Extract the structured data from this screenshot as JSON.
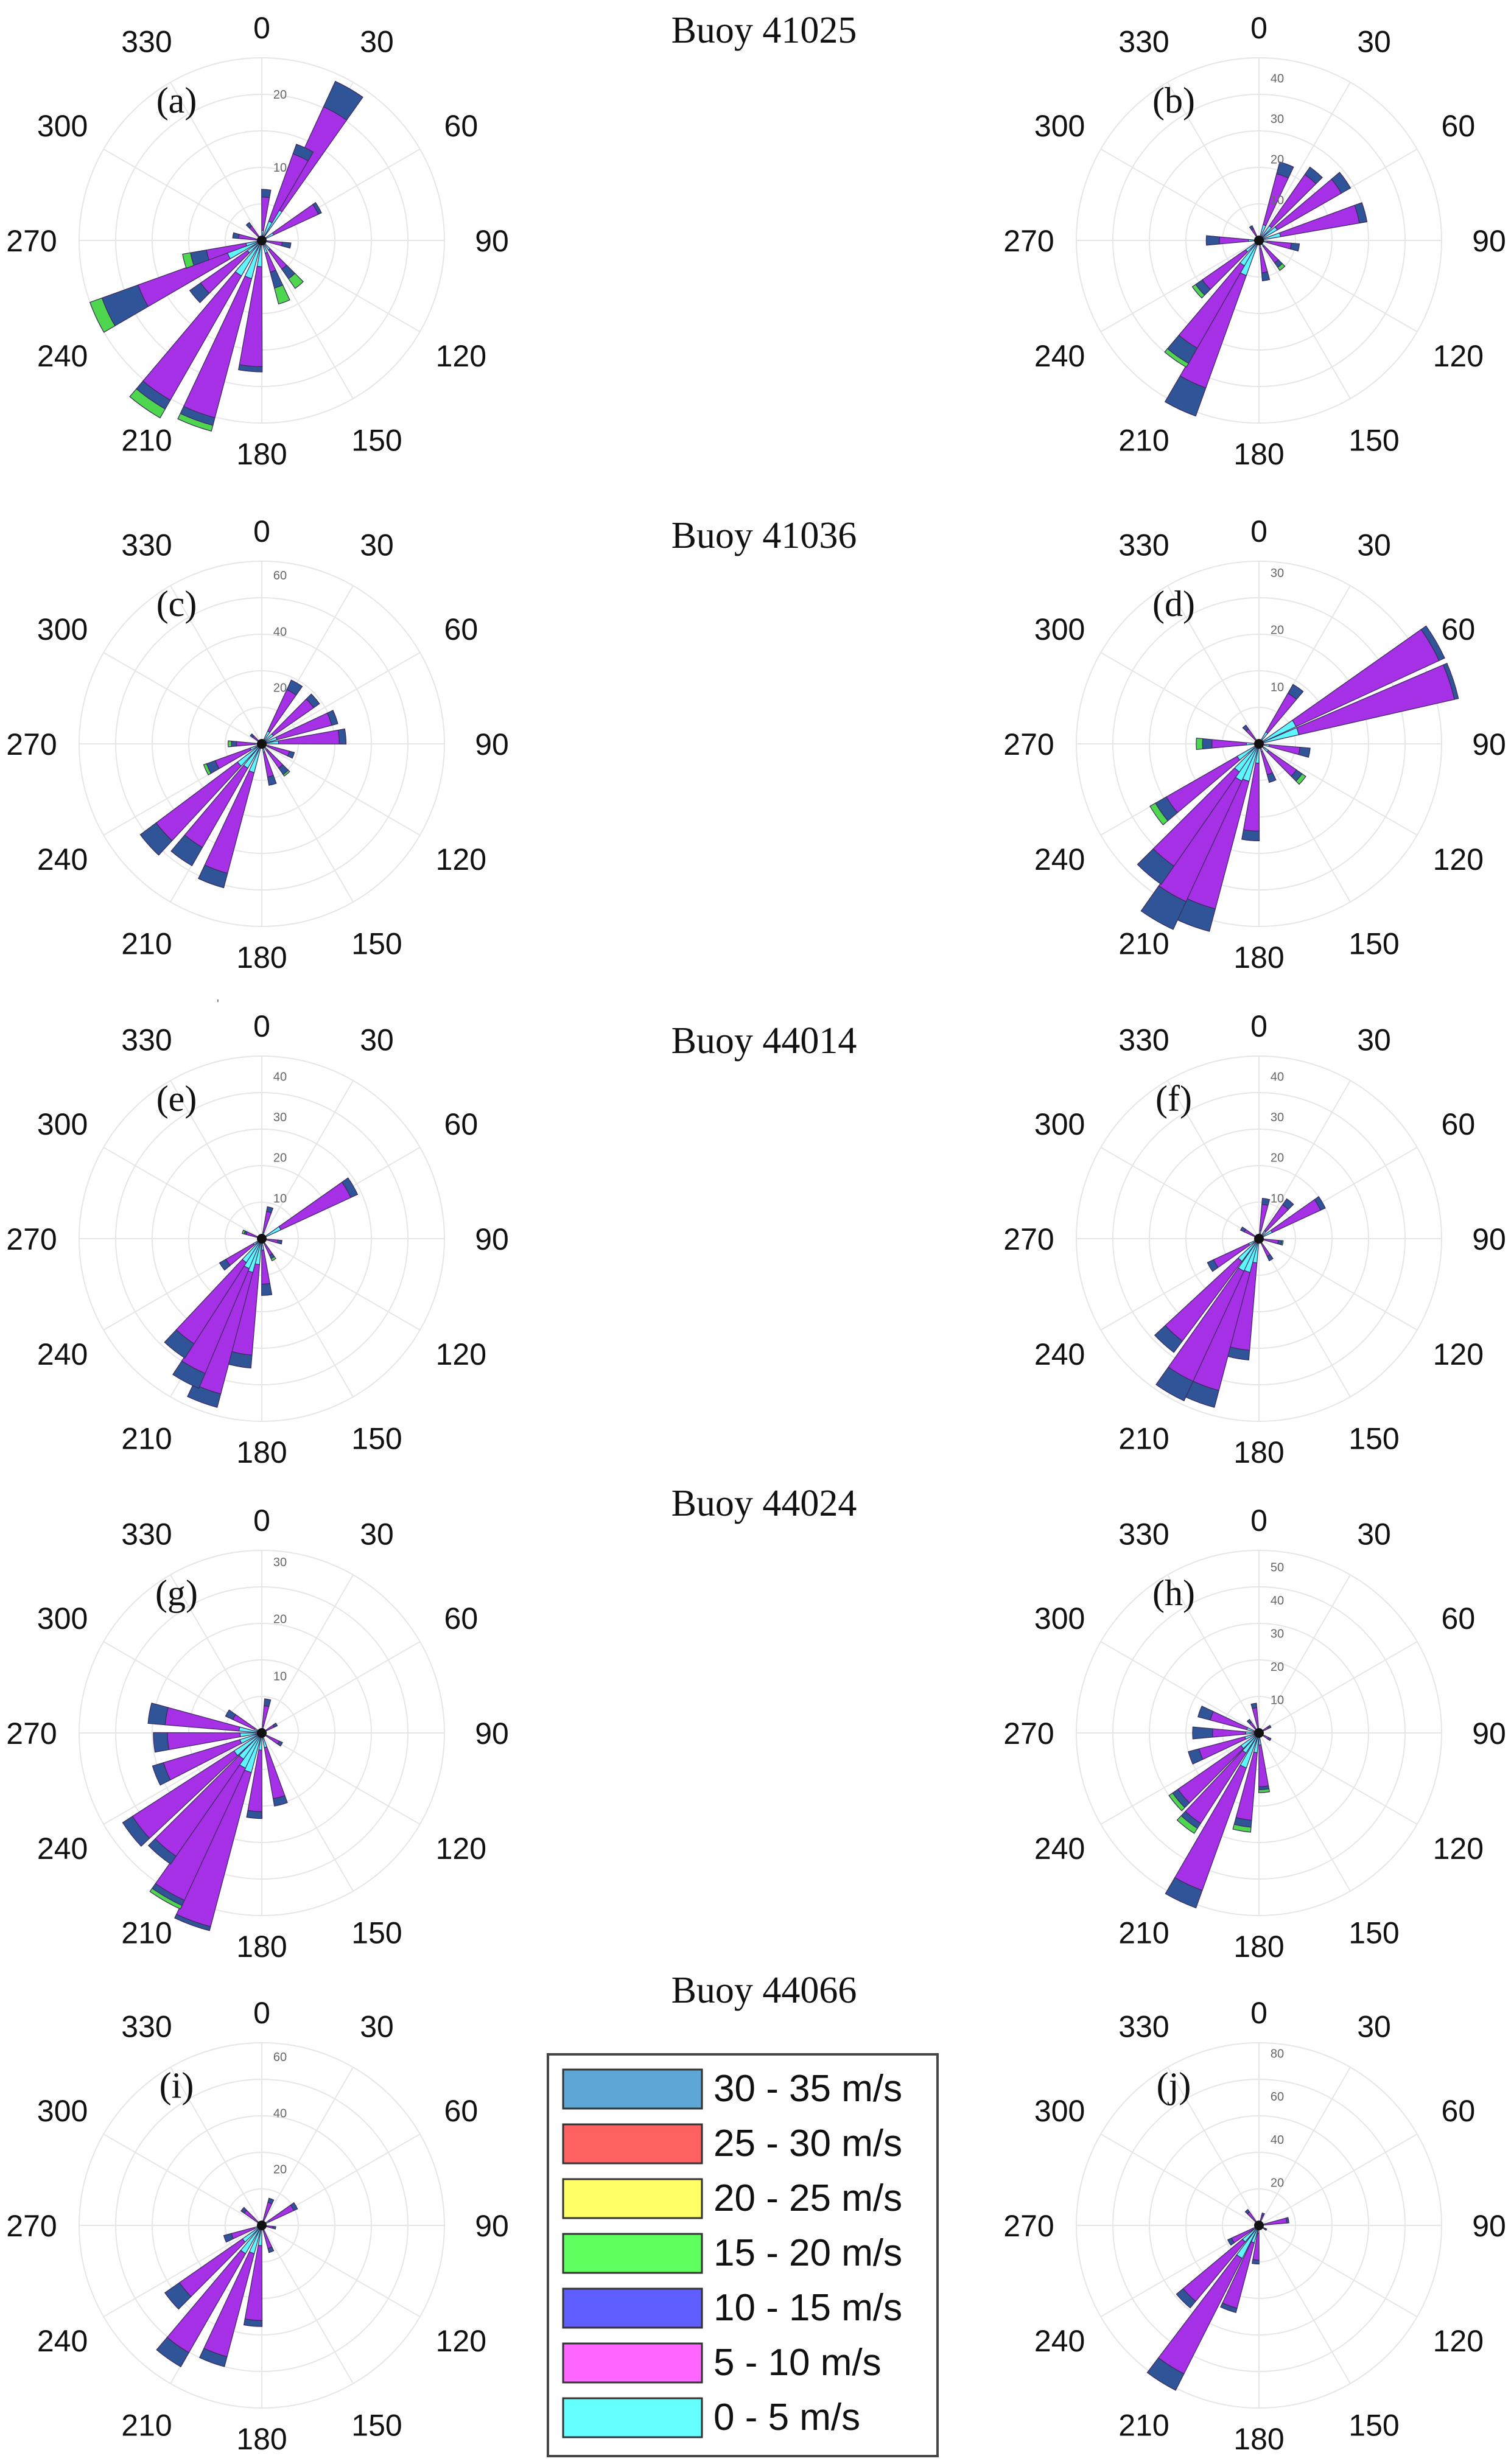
{
  "colors": {
    "0-5": "#5ff7ff",
    "5-10": "#a530e6",
    "10-15": "#2f5497",
    "15-20": "#4fd64f",
    "20-25": "#e8b438",
    "25-30": "#ff6161",
    "30-35": "#5ea6d6"
  },
  "chart_data": [
    {
      "type": "polar-bar",
      "panel": "(a)",
      "group_title": "Buoy 41025",
      "angle_ticks": [
        "0",
        "30",
        "60",
        "90",
        "120",
        "150",
        "180",
        "210",
        "240",
        "270",
        "300",
        "330"
      ],
      "radial_ticks": [
        "10",
        "20"
      ],
      "rmax": 25,
      "bars": [
        {
          "dir": 30,
          "mag": 24,
          "s1": 0.84,
          "s2": 1.0
        },
        {
          "dir": 25,
          "mag": 14,
          "s1": 0.9,
          "s2": 1.0
        },
        {
          "dir": 60,
          "mag": 9,
          "s1": 0.95,
          "s2": 1.0
        },
        {
          "dir": 5,
          "mag": 7,
          "s1": 0.85,
          "s2": 1.0
        },
        {
          "dir": 100,
          "mag": 4,
          "s1": 0.7,
          "s2": 1.0
        },
        {
          "dir": 140,
          "mag": 8,
          "s1": 0.6,
          "s2": 0.8
        },
        {
          "dir": 160,
          "mag": 9,
          "s1": 0.5,
          "s2": 0.75
        },
        {
          "dir": 185,
          "mag": 18,
          "s1": 0.96,
          "s2": 1.0
        },
        {
          "dir": 200,
          "mag": 27,
          "s1": 0.93,
          "s2": 0.97
        },
        {
          "dir": 215,
          "mag": 28,
          "s1": 0.9,
          "s2": 0.95
        },
        {
          "dir": 230,
          "mag": 12,
          "s1": 0.85,
          "s2": 1.0
        },
        {
          "dir": 245,
          "mag": 25,
          "s1": 0.72,
          "s2": 0.93
        },
        {
          "dir": 255,
          "mag": 11,
          "s1": 0.7,
          "s2": 0.9
        },
        {
          "dir": 280,
          "mag": 4,
          "s1": 0.8,
          "s2": 1.0
        },
        {
          "dir": 320,
          "mag": 3,
          "s1": 0.8,
          "s2": 1.0
        }
      ]
    },
    {
      "type": "polar-bar",
      "panel": "(b)",
      "group_title": "Buoy 41025",
      "angle_ticks": [
        "0",
        "30",
        "60",
        "90",
        "120",
        "150",
        "180",
        "210",
        "240",
        "270",
        "300",
        "330"
      ],
      "radial_ticks": [
        "10",
        "20",
        "30",
        "40"
      ],
      "rmax": 45,
      "bars": [
        {
          "dir": 20,
          "mag": 20,
          "s1": 0.85,
          "s2": 1.0
        },
        {
          "dir": 40,
          "mag": 22,
          "s1": 0.9,
          "s2": 1.0
        },
        {
          "dir": 55,
          "mag": 26,
          "s1": 0.9,
          "s2": 1.0
        },
        {
          "dir": 75,
          "mag": 27,
          "s1": 0.93,
          "s2": 1.0
        },
        {
          "dir": 100,
          "mag": 10,
          "s1": 0.8,
          "s2": 1.0
        },
        {
          "dir": 140,
          "mag": 9,
          "s1": 0.75,
          "s2": 0.9
        },
        {
          "dir": 170,
          "mag": 10,
          "s1": 0.8,
          "s2": 1.0
        },
        {
          "dir": 205,
          "mag": 46,
          "s1": 0.84,
          "s2": 1.0
        },
        {
          "dir": 215,
          "mag": 36,
          "s1": 0.85,
          "s2": 0.97
        },
        {
          "dir": 230,
          "mag": 20,
          "s1": 0.85,
          "s2": 0.95
        },
        {
          "dir": 270,
          "mag": 13,
          "s1": 0.75,
          "s2": 1.0
        },
        {
          "dir": 330,
          "mag": 4,
          "s1": 0.8,
          "s2": 1.0
        }
      ]
    },
    {
      "type": "polar-bar",
      "panel": "(c)",
      "group_title": "Buoy 41036",
      "angle_ticks": [
        "0",
        "30",
        "60",
        "90",
        "120",
        "150",
        "180",
        "210",
        "240",
        "270",
        "300",
        "330"
      ],
      "radial_ticks": [
        "20",
        "40",
        "60"
      ],
      "rmax": 65,
      "bars": [
        {
          "dir": 30,
          "mag": 25,
          "s1": 0.85,
          "s2": 1.0
        },
        {
          "dir": 50,
          "mag": 25,
          "s1": 0.9,
          "s2": 1.0
        },
        {
          "dir": 70,
          "mag": 28,
          "s1": 0.92,
          "s2": 1.0
        },
        {
          "dir": 85,
          "mag": 30,
          "s1": 0.92,
          "s2": 1.0
        },
        {
          "dir": 110,
          "mag": 12,
          "s1": 0.85,
          "s2": 1.0
        },
        {
          "dir": 140,
          "mag": 14,
          "s1": 0.75,
          "s2": 0.95
        },
        {
          "dir": 165,
          "mag": 15,
          "s1": 0.8,
          "s2": 1.0
        },
        {
          "dir": 200,
          "mag": 53,
          "s1": 0.9,
          "s2": 1.0
        },
        {
          "dir": 215,
          "mag": 50,
          "s1": 0.85,
          "s2": 1.0
        },
        {
          "dir": 228,
          "mag": 54,
          "s1": 0.87,
          "s2": 1.0
        },
        {
          "dir": 245,
          "mag": 22,
          "s1": 0.8,
          "s2": 0.95
        },
        {
          "dir": 270,
          "mag": 12,
          "s1": 0.75,
          "s2": 0.9
        },
        {
          "dir": 310,
          "mag": 5,
          "s1": 0.8,
          "s2": 1.0
        }
      ]
    },
    {
      "type": "polar-bar",
      "panel": "(d)",
      "group_title": "Buoy 41036",
      "angle_ticks": [
        "0",
        "30",
        "60",
        "90",
        "120",
        "150",
        "180",
        "210",
        "240",
        "270",
        "300",
        "330"
      ],
      "radial_ticks": [
        "10",
        "20",
        "30"
      ],
      "rmax": 32,
      "bars": [
        {
          "dir": 35,
          "mag": 12,
          "s1": 0.85,
          "s2": 1.0
        },
        {
          "dir": 60,
          "mag": 42,
          "s1": 0.97,
          "s2": 1.0
        },
        {
          "dir": 72,
          "mag": 41,
          "s1": 0.98,
          "s2": 1.0
        },
        {
          "dir": 100,
          "mag": 9,
          "s1": 0.8,
          "s2": 1.0
        },
        {
          "dir": 130,
          "mag": 10,
          "s1": 0.8,
          "s2": 0.92
        },
        {
          "dir": 160,
          "mag": 7,
          "s1": 0.8,
          "s2": 1.0
        },
        {
          "dir": 185,
          "mag": 17,
          "s1": 0.9,
          "s2": 1.0
        },
        {
          "dir": 200,
          "mag": 34,
          "s1": 0.88,
          "s2": 1.0
        },
        {
          "dir": 210,
          "mag": 42,
          "s1": 0.85,
          "s2": 1.0
        },
        {
          "dir": 220,
          "mag": 30,
          "s1": 0.87,
          "s2": 1.0
        },
        {
          "dir": 235,
          "mag": 22,
          "s1": 0.85,
          "s2": 0.95
        },
        {
          "dir": 270,
          "mag": 11,
          "s1": 0.75,
          "s2": 0.9
        },
        {
          "dir": 320,
          "mag": 4,
          "s1": 0.8,
          "s2": 1.0
        }
      ]
    },
    {
      "type": "polar-bar",
      "panel": "(e)",
      "group_title": "Buoy 44014",
      "angle_ticks": [
        "0",
        "30",
        "60",
        "90",
        "120",
        "150",
        "180",
        "210",
        "240",
        "270",
        "300",
        "330"
      ],
      "radial_ticks": [
        "10",
        "20",
        "30",
        "40"
      ],
      "rmax": 45,
      "bars": [
        {
          "dir": 15,
          "mag": 8,
          "s1": 0.85,
          "s2": 1.0
        },
        {
          "dir": 60,
          "mag": 26,
          "s1": 0.93,
          "s2": 1.0
        },
        {
          "dir": 100,
          "mag": 5,
          "s1": 0.8,
          "s2": 1.0
        },
        {
          "dir": 150,
          "mag": 6,
          "s1": 0.75,
          "s2": 0.9
        },
        {
          "dir": 175,
          "mag": 14,
          "s1": 0.8,
          "s2": 1.0
        },
        {
          "dir": 190,
          "mag": 32,
          "s1": 0.9,
          "s2": 1.0
        },
        {
          "dir": 200,
          "mag": 43,
          "s1": 0.92,
          "s2": 1.0
        },
        {
          "dir": 208,
          "mag": 40,
          "s1": 0.9,
          "s2": 1.0
        },
        {
          "dir": 218,
          "mag": 35,
          "s1": 0.88,
          "s2": 1.0
        },
        {
          "dir": 235,
          "mag": 12,
          "s1": 0.85,
          "s2": 1.0
        },
        {
          "dir": 290,
          "mag": 5,
          "s1": 0.8,
          "s2": 0.9
        }
      ]
    },
    {
      "type": "polar-bar",
      "panel": "(f)",
      "group_title": "Buoy 44014",
      "angle_ticks": [
        "0",
        "30",
        "60",
        "90",
        "120",
        "150",
        "180",
        "210",
        "240",
        "270",
        "300",
        "330"
      ],
      "radial_ticks": [
        "10",
        "20",
        "30",
        "40"
      ],
      "rmax": 45,
      "bars": [
        {
          "dir": 10,
          "mag": 10,
          "s1": 0.85,
          "s2": 1.0
        },
        {
          "dir": 40,
          "mag": 12,
          "s1": 0.85,
          "s2": 1.0
        },
        {
          "dir": 60,
          "mag": 18,
          "s1": 0.93,
          "s2": 1.0
        },
        {
          "dir": 100,
          "mag": 6,
          "s1": 0.8,
          "s2": 0.95
        },
        {
          "dir": 150,
          "mag": 6,
          "s1": 0.8,
          "s2": 1.0
        },
        {
          "dir": 190,
          "mag": 30,
          "s1": 0.92,
          "s2": 1.0
        },
        {
          "dir": 200,
          "mag": 43,
          "s1": 0.9,
          "s2": 1.0
        },
        {
          "dir": 210,
          "mag": 44,
          "s1": 0.88,
          "s2": 1.0
        },
        {
          "dir": 222,
          "mag": 35,
          "s1": 0.9,
          "s2": 1.0
        },
        {
          "dir": 240,
          "mag": 14,
          "s1": 0.88,
          "s2": 1.0
        },
        {
          "dir": 300,
          "mag": 5,
          "s1": 0.8,
          "s2": 1.0
        }
      ]
    },
    {
      "type": "polar-bar",
      "panel": "(g)",
      "group_title": "Buoy 44024",
      "angle_ticks": [
        "0",
        "30",
        "60",
        "90",
        "120",
        "150",
        "180",
        "210",
        "240",
        "270",
        "300",
        "330"
      ],
      "radial_ticks": [
        "10",
        "20",
        "30"
      ],
      "rmax": 32,
      "bars": [
        {
          "dir": 10,
          "mag": 6,
          "s1": 0.8,
          "s2": 1.0
        },
        {
          "dir": 60,
          "mag": 3,
          "s1": 0.8,
          "s2": 1.0
        },
        {
          "dir": 120,
          "mag": 4,
          "s1": 0.85,
          "s2": 1.0
        },
        {
          "dir": 165,
          "mag": 13,
          "s1": 0.9,
          "s2": 1.0
        },
        {
          "dir": 185,
          "mag": 15,
          "s1": 0.92,
          "s2": 1.0
        },
        {
          "dir": 200,
          "mag": 38,
          "s1": 0.98,
          "s2": 1.0
        },
        {
          "dir": 210,
          "mag": 34,
          "s1": 0.95,
          "s2": 0.98
        },
        {
          "dir": 220,
          "mag": 28,
          "s1": 0.94,
          "s2": 1.0
        },
        {
          "dir": 232,
          "mag": 29,
          "s1": 0.93,
          "s2": 1.0
        },
        {
          "dir": 248,
          "mag": 20,
          "s1": 0.9,
          "s2": 1.0
        },
        {
          "dir": 265,
          "mag": 19,
          "s1": 0.87,
          "s2": 1.0
        },
        {
          "dir": 280,
          "mag": 20,
          "s1": 0.85,
          "s2": 1.0
        },
        {
          "dir": 300,
          "mag": 7,
          "s1": 0.8,
          "s2": 1.0
        }
      ]
    },
    {
      "type": "polar-bar",
      "panel": "(h)",
      "group_title": "Buoy 44024",
      "angle_ticks": [
        "0",
        "30",
        "60",
        "90",
        "120",
        "150",
        "180",
        "210",
        "240",
        "270",
        "300",
        "330"
      ],
      "radial_ticks": [
        "10",
        "20",
        "30",
        "40",
        "50"
      ],
      "rmax": 55,
      "bars": [
        {
          "dir": 350,
          "mag": 9,
          "s1": 0.85,
          "s2": 1.0
        },
        {
          "dir": 60,
          "mag": 4,
          "s1": 0.8,
          "s2": 1.0
        },
        {
          "dir": 120,
          "mag": 4,
          "s1": 0.8,
          "s2": 1.0
        },
        {
          "dir": 175,
          "mag": 18,
          "s1": 0.9,
          "s2": 0.95
        },
        {
          "dir": 190,
          "mag": 30,
          "s1": 0.88,
          "s2": 0.95
        },
        {
          "dir": 205,
          "mag": 56,
          "s1": 0.9,
          "s2": 1.0
        },
        {
          "dir": 218,
          "mag": 36,
          "s1": 0.9,
          "s2": 0.95
        },
        {
          "dir": 230,
          "mag": 33,
          "s1": 0.9,
          "s2": 0.96
        },
        {
          "dir": 250,
          "mag": 22,
          "s1": 0.85,
          "s2": 1.0
        },
        {
          "dir": 270,
          "mag": 20,
          "s1": 0.7,
          "s2": 1.0
        },
        {
          "dir": 290,
          "mag": 19,
          "s1": 0.8,
          "s2": 1.0
        },
        {
          "dir": 320,
          "mag": 5,
          "s1": 0.8,
          "s2": 1.0
        }
      ]
    },
    {
      "type": "polar-bar",
      "panel": "(i)",
      "group_title": "Buoy 44066",
      "angle_ticks": [
        "0",
        "30",
        "60",
        "90",
        "120",
        "150",
        "180",
        "210",
        "240",
        "270",
        "300",
        "330"
      ],
      "radial_ticks": [
        "20",
        "40",
        "60"
      ],
      "rmax": 65,
      "bars": [
        {
          "dir": 20,
          "mag": 10,
          "s1": 0.85,
          "s2": 1.0
        },
        {
          "dir": 60,
          "mag": 14,
          "s1": 0.9,
          "s2": 1.0
        },
        {
          "dir": 100,
          "mag": 5,
          "s1": 0.8,
          "s2": 1.0
        },
        {
          "dir": 160,
          "mag": 10,
          "s1": 0.85,
          "s2": 1.0
        },
        {
          "dir": 185,
          "mag": 36,
          "s1": 0.94,
          "s2": 1.0
        },
        {
          "dir": 200,
          "mag": 52,
          "s1": 0.93,
          "s2": 1.0
        },
        {
          "dir": 215,
          "mag": 58,
          "s1": 0.9,
          "s2": 1.0
        },
        {
          "dir": 230,
          "mag": 42,
          "s1": 0.85,
          "s2": 1.0
        },
        {
          "dir": 250,
          "mag": 14,
          "s1": 0.8,
          "s2": 1.0
        },
        {
          "dir": 310,
          "mag": 9,
          "s1": 0.85,
          "s2": 1.0
        }
      ]
    },
    {
      "type": "polar-bar",
      "panel": "(j)",
      "group_title": "Buoy 44066",
      "angle_ticks": [
        "0",
        "30",
        "60",
        "90",
        "120",
        "150",
        "180",
        "210",
        "240",
        "270",
        "300",
        "330"
      ],
      "radial_ticks": [
        "20",
        "40",
        "60",
        "80"
      ],
      "rmax": 85,
      "bars": [
        {
          "dir": 20,
          "mag": 6,
          "s1": 0.8,
          "s2": 1.0
        },
        {
          "dir": 80,
          "mag": 14,
          "s1": 0.93,
          "s2": 1.0
        },
        {
          "dir": 120,
          "mag": 4,
          "s1": 0.8,
          "s2": 1.0
        },
        {
          "dir": 185,
          "mag": 18,
          "s1": 0.9,
          "s2": 1.0
        },
        {
          "dir": 200,
          "mag": 42,
          "s1": 0.95,
          "s2": 1.0
        },
        {
          "dir": 212,
          "mag": 86,
          "s1": 0.9,
          "s2": 1.0
        },
        {
          "dir": 225,
          "mag": 50,
          "s1": 0.92,
          "s2": 1.0
        },
        {
          "dir": 240,
          "mag": 16,
          "s1": 0.88,
          "s2": 1.0
        },
        {
          "dir": 320,
          "mag": 9,
          "s1": 0.85,
          "s2": 1.0
        }
      ]
    }
  ],
  "legend": {
    "entries": [
      {
        "label": "30 - 35 m/s",
        "color": "#5ea6d6"
      },
      {
        "label": "25 - 30 m/s",
        "color": "#ff6161"
      },
      {
        "label": "20 - 25 m/s",
        "color": "#ffff66"
      },
      {
        "label": "15 - 20 m/s",
        "color": "#5fff5f"
      },
      {
        "label": "10 - 15 m/s",
        "color": "#5f5fff"
      },
      {
        "label": "5 - 10 m/s",
        "color": "#ff66ff"
      },
      {
        "label": "0 - 5 m/s",
        "color": "#66ffff"
      }
    ]
  },
  "stray_mark": "'"
}
